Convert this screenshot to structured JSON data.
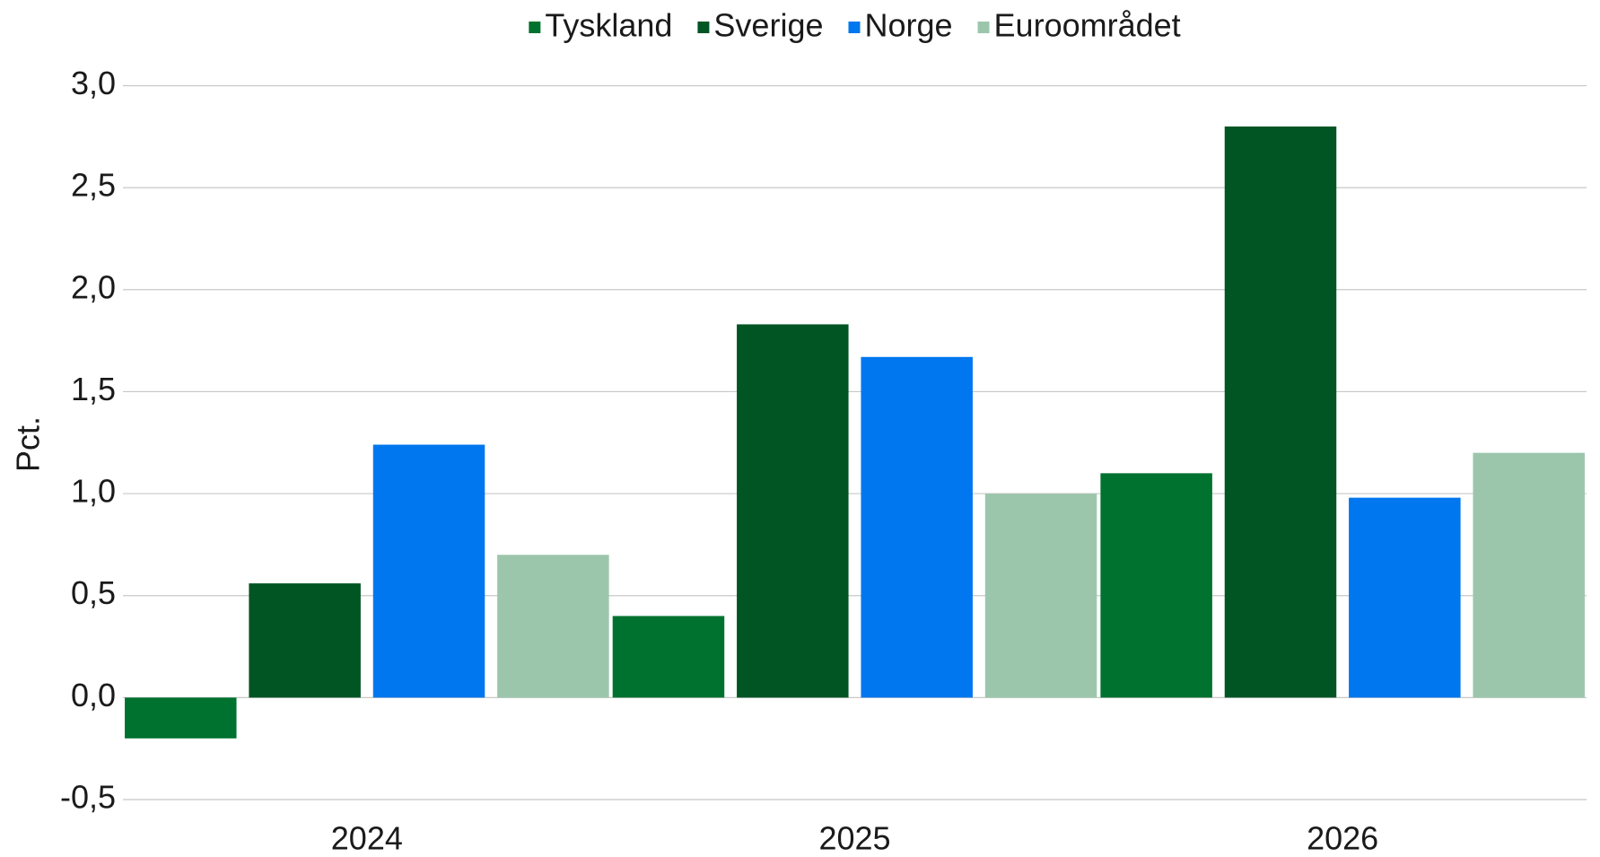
{
  "chart_data": {
    "type": "bar",
    "y_label": "Pct.",
    "categories": [
      "2024",
      "2025",
      "2026"
    ],
    "series": [
      {
        "name": "Tyskland",
        "color": "#00722f",
        "values": [
          -0.2,
          0.4,
          1.1
        ]
      },
      {
        "name": "Sverige",
        "color": "#005523",
        "values": [
          0.56,
          1.83,
          2.8
        ]
      },
      {
        "name": "Norge",
        "color": "#0077ee",
        "values": [
          1.24,
          1.67,
          0.98
        ]
      },
      {
        "name": "Euroområdet",
        "color": "#9cc6ab",
        "values": [
          0.7,
          1.0,
          1.2
        ]
      }
    ],
    "ylim": [
      -0.5,
      3.0
    ],
    "yticks": [
      {
        "value": -0.5,
        "label": "-0,5"
      },
      {
        "value": 0,
        "label": "0,0"
      },
      {
        "value": 0.5,
        "label": "0,5"
      },
      {
        "value": 1.0,
        "label": "1,0"
      },
      {
        "value": 1.5,
        "label": "1,5"
      },
      {
        "value": 2.0,
        "label": "2,0"
      },
      {
        "value": 2.5,
        "label": "2,5"
      },
      {
        "value": 3.0,
        "label": "3,0"
      }
    ],
    "grid": true,
    "legend": "top"
  }
}
